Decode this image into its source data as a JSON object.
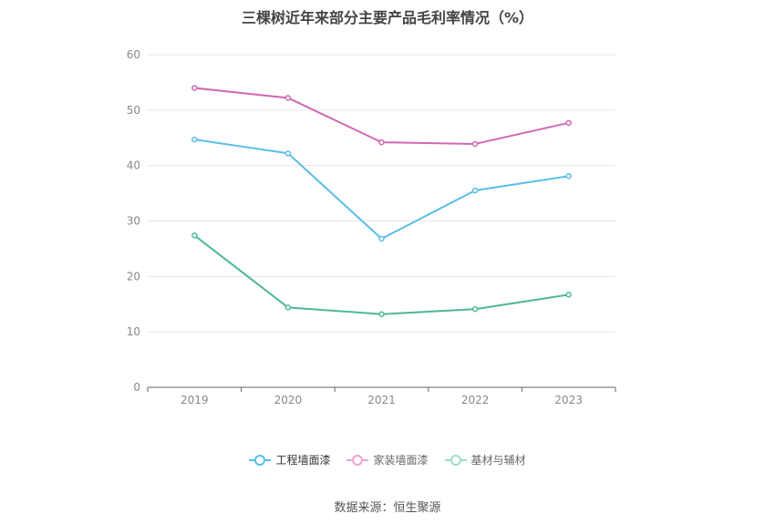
{
  "chart_data": {
    "type": "line",
    "title": "三棵树近年来部分主要产品毛利率情况（%）",
    "categories": [
      "2019",
      "2020",
      "2021",
      "2022",
      "2023"
    ],
    "ylim": [
      0,
      60
    ],
    "yticks": [
      0,
      10,
      20,
      30,
      40,
      50,
      60
    ],
    "grid": true,
    "legend_position": "bottom",
    "series": [
      {
        "name": "工程墙面漆",
        "color": "#5bbde8",
        "values": [
          44.7,
          42.2,
          26.8,
          35.5,
          38.1
        ]
      },
      {
        "name": "家装墙面漆",
        "color": "#d166b4",
        "values": [
          54.0,
          52.2,
          44.2,
          43.9,
          47.7
        ]
      },
      {
        "name": "基材与辅材",
        "color": "#4db89a",
        "values": [
          27.4,
          14.4,
          13.2,
          14.1,
          16.7
        ]
      }
    ]
  },
  "legend": {
    "items": [
      {
        "label": "工程墙面漆",
        "color": "#5bbde8"
      },
      {
        "label": "家装墙面漆",
        "color": "#f0a0d0"
      },
      {
        "label": "基材与辅材",
        "color": "#a0dcc8"
      }
    ]
  },
  "source": "数据来源：恒生聚源"
}
